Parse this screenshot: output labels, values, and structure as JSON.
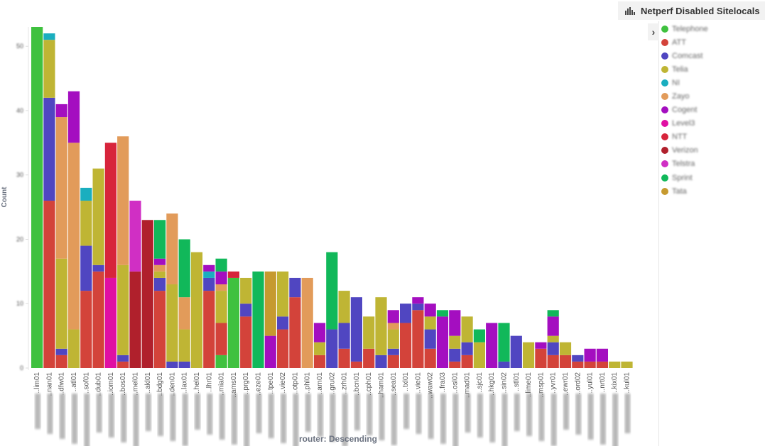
{
  "legend": {
    "title": "Netperf Disabled Sitelocals",
    "toggle_icon": "chevron-right-icon",
    "title_icon": "bar-chart-icon",
    "series": [
      {
        "label": "Telephone",
        "color": "#3fc13f"
      },
      {
        "label": "ATT",
        "color": "#d3433a"
      },
      {
        "label": "Comcast",
        "color": "#5046c1"
      },
      {
        "label": "Telia",
        "color": "#bfb534"
      },
      {
        "label": "NI",
        "color": "#1aaebf"
      },
      {
        "label": "Zayo",
        "color": "#e29b5a"
      },
      {
        "label": "Cogent",
        "color": "#a40ec0"
      },
      {
        "label": "Level3",
        "color": "#e00fa3"
      },
      {
        "label": "NTT",
        "color": "#d7243b"
      },
      {
        "label": "Verizon",
        "color": "#b0202c"
      },
      {
        "label": "Telstra",
        "color": "#d02fc4"
      },
      {
        "label": "Sprint",
        "color": "#11b85a"
      },
      {
        "label": "Tata",
        "color": "#c69a2f"
      }
    ]
  },
  "chart_data": {
    "type": "bar",
    "stacked": true,
    "title": "Netperf Disabled Sitelocals",
    "xlabel": "router: Descending",
    "ylabel": "Count",
    "ylim": [
      0,
      53
    ],
    "yticks": [
      0,
      10,
      20,
      30,
      40,
      50
    ],
    "grid": false,
    "legend_position": "right",
    "categories": [
      "..lim01",
      "..nan01",
      "..dfw01",
      "..atl01",
      "..sof01",
      "..dub01",
      "..iom01",
      "..bos01",
      "..mel01",
      "..akl01",
      "..bdg01",
      "..den01",
      "..lax01",
      "..hel01",
      "..lhr01",
      "..mia01",
      "..ams01",
      "..prg01",
      "..eze01",
      "..tpe01",
      "..vie02",
      "..otp01",
      "..phl01",
      "..arn01",
      "..gru02",
      "..zrh01",
      "..bcn01",
      "..cph01",
      "..ham01",
      "..sea01",
      "..txl01",
      "..vie01",
      "..waw02",
      "..fra03",
      "..osl01",
      "..mad01",
      "..sjc01",
      "..hkg01",
      "..sin02",
      "..stl01",
      "..lime01",
      "..msp01",
      "..yvr01",
      "..ewr01",
      "..ord02",
      "..yul01",
      "..nrt01",
      "..kix01",
      "..kul01"
    ],
    "series": [
      {
        "name": "Telephone",
        "color": "#3fc13f",
        "values": [
          53,
          0,
          0,
          0,
          0,
          0,
          0,
          0,
          0,
          0,
          0,
          0,
          0,
          0,
          0,
          2,
          14,
          0,
          0,
          0,
          0,
          0,
          0,
          0,
          0,
          0,
          0,
          0,
          0,
          0,
          0,
          0,
          0,
          0,
          0,
          0,
          0,
          0,
          0,
          0,
          0,
          0,
          0,
          0,
          0,
          0,
          0,
          0,
          0
        ]
      },
      {
        "name": "ATT",
        "color": "#d3433a",
        "values": [
          0,
          26,
          2,
          0,
          12,
          15,
          0,
          1,
          0,
          0,
          12,
          0,
          0,
          0,
          12,
          5,
          0,
          8,
          0,
          0,
          6,
          11,
          0,
          2,
          0,
          3,
          1,
          3,
          0,
          2,
          7,
          9,
          3,
          0,
          1,
          2,
          0,
          0,
          0,
          0,
          0,
          3,
          2,
          2,
          1,
          1,
          1,
          0,
          0
        ]
      },
      {
        "name": "Comcast",
        "color": "#5046c1",
        "values": [
          0,
          16,
          1,
          0,
          7,
          1,
          0,
          1,
          0,
          0,
          2,
          1,
          1,
          0,
          2,
          0,
          0,
          2,
          0,
          0,
          2,
          3,
          0,
          0,
          6,
          4,
          10,
          0,
          2,
          1,
          3,
          1,
          3,
          0,
          2,
          2,
          0,
          0,
          1,
          5,
          0,
          0,
          2,
          0,
          1,
          0,
          0,
          0,
          0
        ]
      },
      {
        "name": "Telia",
        "color": "#bfb534",
        "values": [
          0,
          9,
          14,
          6,
          7,
          15,
          0,
          14,
          0,
          0,
          1,
          12,
          5,
          18,
          0,
          5,
          0,
          4,
          0,
          0,
          7,
          0,
          0,
          2,
          0,
          5,
          0,
          5,
          9,
          3,
          0,
          0,
          2,
          0,
          2,
          4,
          4,
          0,
          0,
          0,
          4,
          0,
          1,
          2,
          0,
          0,
          0,
          1,
          1
        ]
      },
      {
        "name": "NI",
        "color": "#1aaebf",
        "values": [
          0,
          1,
          0,
          0,
          2,
          0,
          0,
          0,
          0,
          0,
          0,
          0,
          0,
          0,
          1,
          0,
          0,
          0,
          0,
          0,
          0,
          0,
          0,
          0,
          0,
          0,
          0,
          0,
          0,
          0,
          0,
          0,
          0,
          0,
          0,
          0,
          0,
          0,
          0,
          0,
          0,
          0,
          0,
          0,
          0,
          0,
          0,
          0,
          0
        ]
      },
      {
        "name": "Zayo",
        "color": "#e29b5a",
        "values": [
          0,
          0,
          22,
          29,
          0,
          0,
          0,
          20,
          0,
          0,
          1,
          11,
          5,
          0,
          0,
          1,
          0,
          0,
          0,
          0,
          0,
          0,
          14,
          0,
          0,
          0,
          0,
          0,
          0,
          1,
          0,
          0,
          0,
          0,
          0,
          0,
          0,
          0,
          0,
          0,
          0,
          0,
          0,
          0,
          0,
          0,
          0,
          0,
          0
        ]
      },
      {
        "name": "Cogent",
        "color": "#a40ec0",
        "values": [
          0,
          0,
          2,
          8,
          0,
          0,
          0,
          0,
          0,
          0,
          1,
          0,
          0,
          0,
          1,
          2,
          0,
          0,
          0,
          5,
          0,
          0,
          0,
          3,
          0,
          0,
          0,
          0,
          0,
          2,
          0,
          1,
          2,
          8,
          4,
          0,
          0,
          7,
          0,
          0,
          0,
          1,
          3,
          0,
          0,
          2,
          2,
          0,
          0
        ]
      },
      {
        "name": "Level3",
        "color": "#e00fa3",
        "values": [
          0,
          0,
          0,
          0,
          0,
          0,
          14,
          0,
          0,
          0,
          0,
          0,
          0,
          0,
          0,
          0,
          0,
          0,
          0,
          0,
          0,
          0,
          0,
          0,
          0,
          0,
          0,
          0,
          0,
          0,
          0,
          0,
          0,
          0,
          0,
          0,
          0,
          0,
          0,
          0,
          0,
          0,
          0,
          0,
          0,
          0,
          0,
          0,
          0
        ]
      },
      {
        "name": "NTT",
        "color": "#d7243b",
        "values": [
          0,
          0,
          0,
          0,
          0,
          0,
          21,
          0,
          0,
          0,
          0,
          0,
          0,
          0,
          0,
          0,
          1,
          0,
          0,
          0,
          0,
          0,
          0,
          0,
          0,
          0,
          0,
          0,
          0,
          0,
          0,
          0,
          0,
          0,
          0,
          0,
          0,
          0,
          0,
          0,
          0,
          0,
          0,
          0,
          0,
          0,
          0,
          0,
          0
        ]
      },
      {
        "name": "Verizon",
        "color": "#b0202c",
        "values": [
          0,
          0,
          0,
          0,
          0,
          0,
          0,
          0,
          15,
          23,
          0,
          0,
          0,
          0,
          0,
          0,
          0,
          0,
          0,
          0,
          0,
          0,
          0,
          0,
          0,
          0,
          0,
          0,
          0,
          0,
          0,
          0,
          0,
          0,
          0,
          0,
          0,
          0,
          0,
          0,
          0,
          0,
          0,
          0,
          0,
          0,
          0,
          0,
          0
        ]
      },
      {
        "name": "Telstra",
        "color": "#d02fc4",
        "values": [
          0,
          0,
          0,
          0,
          0,
          0,
          0,
          0,
          11,
          0,
          0,
          0,
          0,
          0,
          0,
          0,
          0,
          0,
          0,
          0,
          0,
          0,
          0,
          0,
          0,
          0,
          0,
          0,
          0,
          0,
          0,
          0,
          0,
          0,
          0,
          0,
          0,
          0,
          0,
          0,
          0,
          0,
          0,
          0,
          0,
          0,
          0,
          0,
          0
        ]
      },
      {
        "name": "Sprint",
        "color": "#11b85a",
        "values": [
          0,
          0,
          0,
          0,
          0,
          0,
          0,
          0,
          0,
          0,
          6,
          0,
          9,
          0,
          0,
          2,
          0,
          0,
          15,
          0,
          0,
          0,
          0,
          0,
          12,
          0,
          0,
          0,
          0,
          0,
          0,
          0,
          0,
          1,
          0,
          0,
          2,
          0,
          6,
          0,
          0,
          0,
          1,
          0,
          0,
          0,
          0,
          0,
          0
        ]
      },
      {
        "name": "Tata",
        "color": "#c69a2f",
        "values": [
          0,
          0,
          0,
          0,
          0,
          0,
          0,
          0,
          0,
          0,
          0,
          0,
          0,
          0,
          0,
          0,
          0,
          0,
          0,
          10,
          0,
          0,
          0,
          0,
          0,
          0,
          0,
          0,
          0,
          0,
          0,
          0,
          0,
          0,
          0,
          0,
          0,
          0,
          0,
          0,
          0,
          0,
          0,
          0,
          0,
          0,
          0,
          0,
          0
        ]
      }
    ]
  }
}
